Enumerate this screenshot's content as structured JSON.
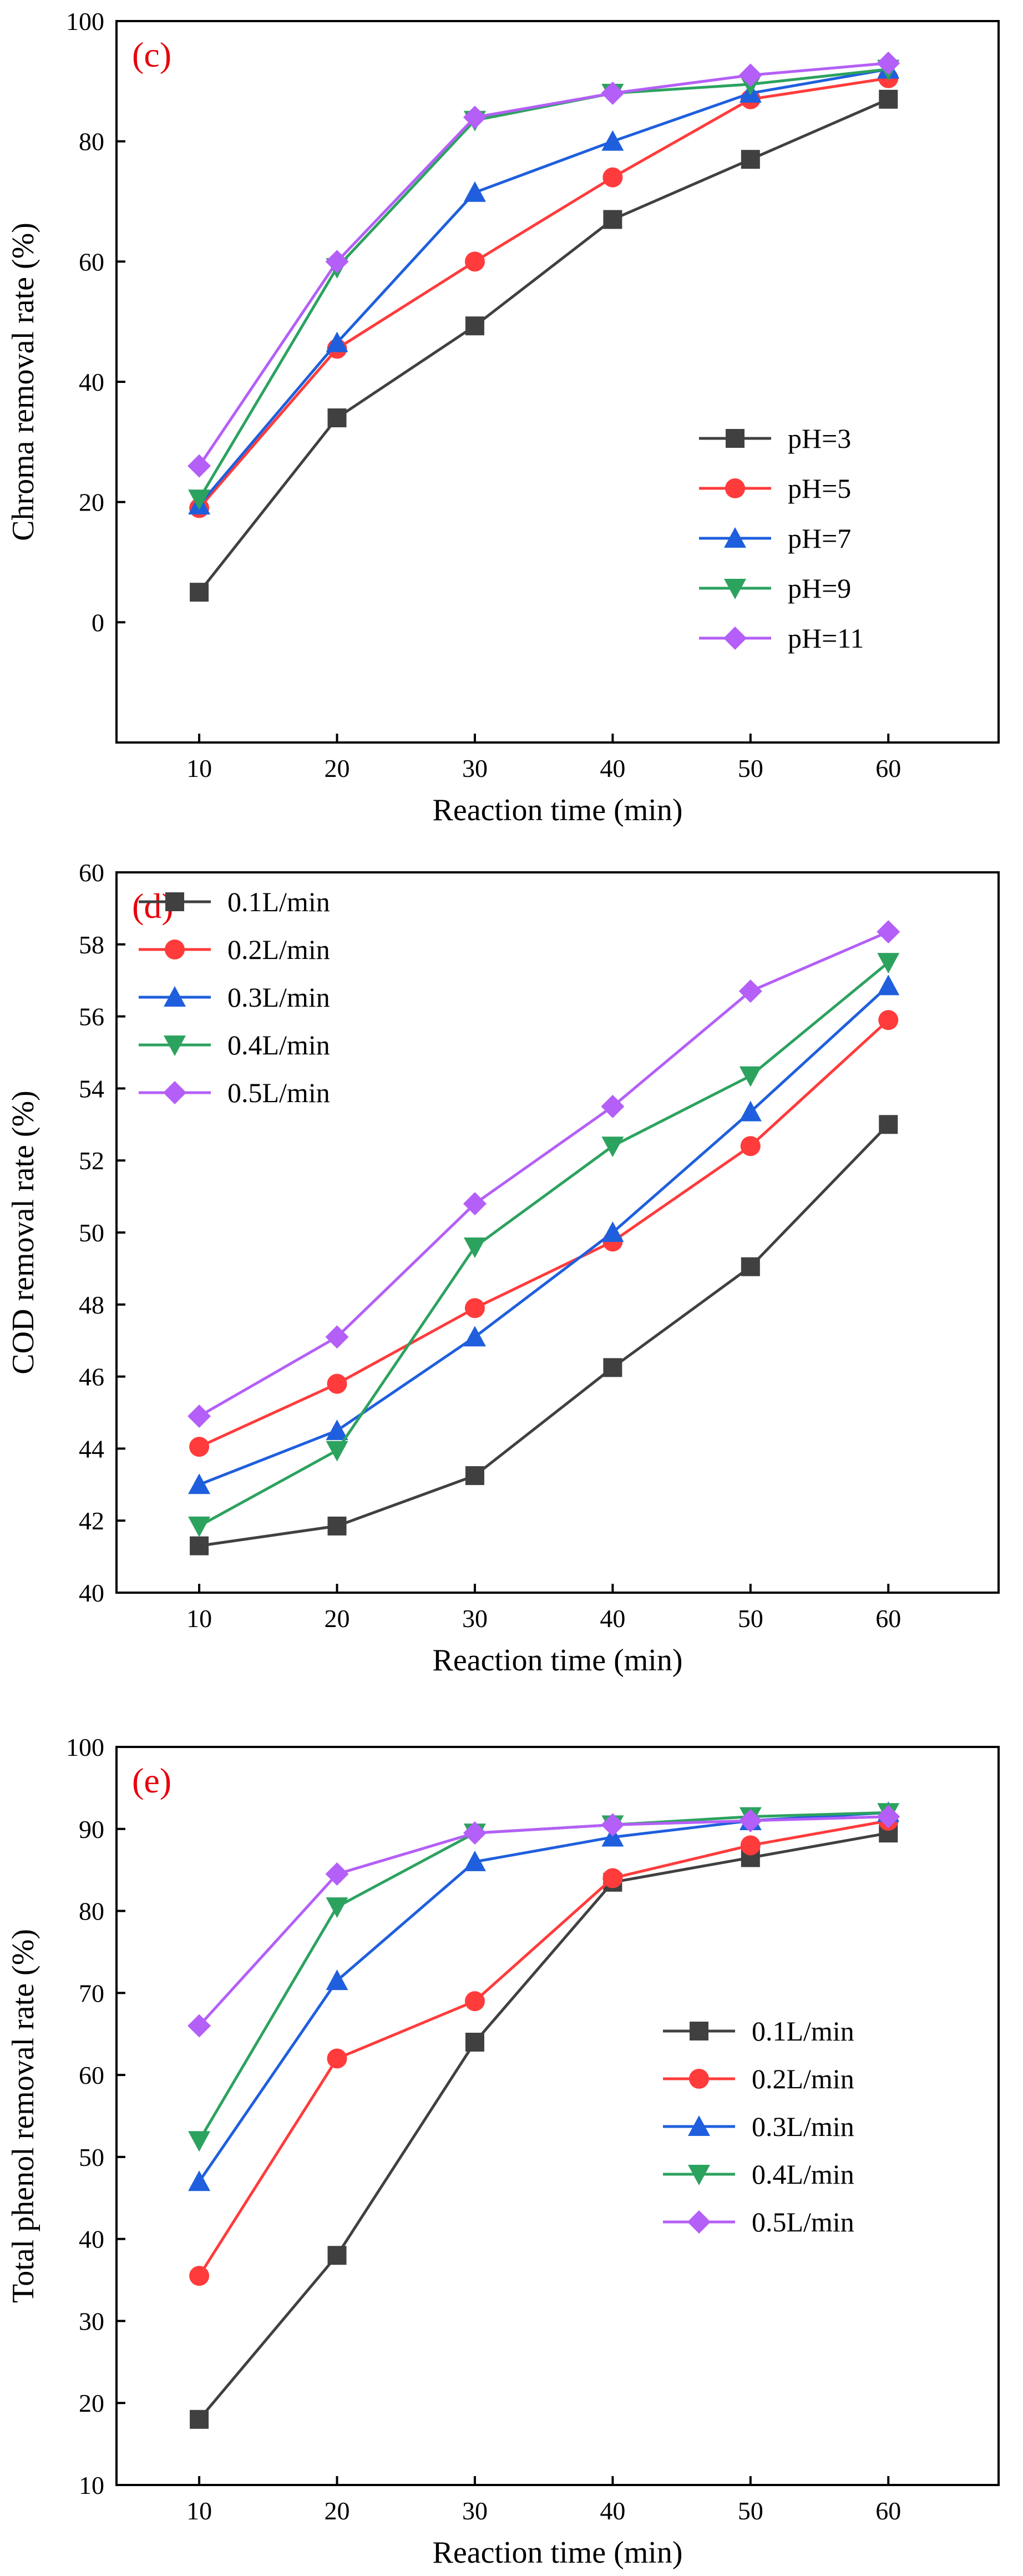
{
  "chart_data": [
    {
      "type": "line",
      "panel_label": "(c)",
      "xlabel": "Reaction time (min)",
      "ylabel": "Chroma removal rate (%)",
      "x": [
        10,
        20,
        30,
        40,
        50,
        60
      ],
      "xlim": [
        4,
        68
      ],
      "ylim": [
        -20,
        100
      ],
      "xticks": [
        "10",
        "20",
        "30",
        "40",
        "50",
        "60"
      ],
      "yticks": [
        "0",
        "20",
        "40",
        "60",
        "80",
        "100"
      ],
      "grid": false,
      "legend_position": "bottom-right",
      "series": [
        {
          "name": "pH=3",
          "color": "#404040",
          "marker": "square",
          "values": [
            5,
            34,
            49.3,
            67,
            77,
            87
          ]
        },
        {
          "name": "pH=5",
          "color": "#ff3b3b",
          "marker": "circle",
          "values": [
            19,
            45.5,
            60,
            74,
            87,
            90.5
          ]
        },
        {
          "name": "pH=7",
          "color": "#1f5fdd",
          "marker": "triangle-up",
          "values": [
            19.5,
            46.5,
            71.5,
            80,
            88,
            92
          ]
        },
        {
          "name": "pH=9",
          "color": "#2ca25f",
          "marker": "triangle-down",
          "values": [
            20.5,
            59,
            83.5,
            88,
            89.5,
            92
          ]
        },
        {
          "name": "pH=11",
          "color": "#b45ff7",
          "marker": "diamond",
          "values": [
            26,
            60,
            84,
            88,
            91,
            93
          ]
        }
      ]
    },
    {
      "type": "line",
      "panel_label": "(d)",
      "xlabel": "Reaction time (min)",
      "ylabel": "COD removal rate (%)",
      "x": [
        10,
        20,
        30,
        40,
        50,
        60
      ],
      "xlim": [
        4,
        68
      ],
      "ylim": [
        40,
        60
      ],
      "xticks": [
        "10",
        "20",
        "30",
        "40",
        "50",
        "60"
      ],
      "yticks": [
        "40",
        "42",
        "44",
        "46",
        "48",
        "50",
        "52",
        "54",
        "56",
        "58",
        "60"
      ],
      "grid": false,
      "legend_position": "top-left",
      "series": [
        {
          "name": "0.1L/min",
          "color": "#404040",
          "marker": "square",
          "values": [
            41.3,
            41.85,
            43.25,
            46.25,
            49.05,
            53
          ]
        },
        {
          "name": "0.2L/min",
          "color": "#ff3b3b",
          "marker": "circle",
          "values": [
            44.05,
            45.8,
            47.9,
            49.75,
            52.4,
            55.9
          ]
        },
        {
          "name": "0.3L/min",
          "color": "#1f5fdd",
          "marker": "triangle-up",
          "values": [
            43,
            44.5,
            47.1,
            50,
            53.35,
            56.85
          ]
        },
        {
          "name": "0.4L/min",
          "color": "#2ca25f",
          "marker": "triangle-down",
          "values": [
            41.85,
            43.95,
            49.6,
            52.4,
            54.35,
            57.5
          ]
        },
        {
          "name": "0.5L/min",
          "color": "#b45ff7",
          "marker": "diamond",
          "values": [
            44.9,
            47.1,
            50.8,
            53.5,
            56.7,
            58.35
          ]
        }
      ]
    },
    {
      "type": "line",
      "panel_label": "(e)",
      "xlabel": "Reaction time  (min)",
      "ylabel": "Total phenol removal rate (%)",
      "x": [
        10,
        20,
        30,
        40,
        50,
        60
      ],
      "xlim": [
        4,
        68
      ],
      "ylim": [
        10,
        100
      ],
      "xticks": [
        "10",
        "20",
        "30",
        "40",
        "50",
        "60"
      ],
      "yticks": [
        "10",
        "20",
        "30",
        "40",
        "50",
        "60",
        "70",
        "80",
        "90",
        "100"
      ],
      "grid": false,
      "legend_position": "bottom-right",
      "series": [
        {
          "name": "0.1L/min",
          "color": "#404040",
          "marker": "square",
          "values": [
            18,
            38,
            64,
            83.5,
            86.5,
            89.5
          ]
        },
        {
          "name": "0.2L/min",
          "color": "#ff3b3b",
          "marker": "circle",
          "values": [
            35.5,
            62,
            69,
            84,
            88,
            91
          ]
        },
        {
          "name": "0.3L/min",
          "color": "#1f5fdd",
          "marker": "triangle-up",
          "values": [
            47,
            71.5,
            86,
            89,
            91,
            92
          ]
        },
        {
          "name": "0.4L/min",
          "color": "#2ca25f",
          "marker": "triangle-down",
          "values": [
            52,
            80.5,
            89.5,
            90.5,
            91.5,
            92
          ]
        },
        {
          "name": "0.5L/min",
          "color": "#b45ff7",
          "marker": "diamond",
          "values": [
            66,
            84.5,
            89.5,
            90.5,
            91,
            91.5
          ]
        }
      ]
    }
  ]
}
